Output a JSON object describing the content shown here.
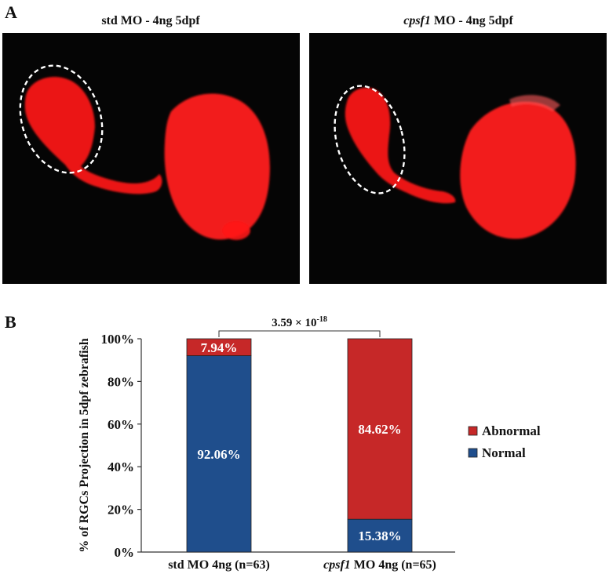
{
  "panel_a": {
    "label": "A",
    "left_image": {
      "title_main": "std MO - 4ng 5dpf",
      "title_italic": ""
    },
    "right_image": {
      "title_italic": "cpsf1",
      "title_main": " MO - 4ng 5dpf"
    }
  },
  "panel_b": {
    "label": "B"
  },
  "colors": {
    "abnormal": "#c62828",
    "normal": "#1f4e8c",
    "fluorescence": "#ff1a1a"
  },
  "chart_data": {
    "type": "bar",
    "stacked": true,
    "ylabel": "% of RGCs  Projection  in 5dpf zebrafish",
    "yticks": [
      "0%",
      "20%",
      "40%",
      "60%",
      "80%",
      "100%"
    ],
    "ylim": [
      0,
      100
    ],
    "categories": [
      {
        "prefix": "",
        "italic": "",
        "suffix": "std MO 4ng (n=63)"
      },
      {
        "prefix": "",
        "italic": "cpsf1",
        "suffix": " MO 4ng (n=65)"
      }
    ],
    "series": [
      {
        "name": "Normal",
        "values": [
          92.06,
          15.38
        ],
        "labels": [
          "92.06%",
          "15.38%"
        ]
      },
      {
        "name": "Abnormal",
        "values": [
          7.94,
          84.62
        ],
        "labels": [
          "7.94%",
          "84.62%"
        ]
      }
    ],
    "legend": {
      "placement": "right",
      "order": [
        "Abnormal",
        "Normal"
      ]
    },
    "annotation": {
      "base": "3.59 × 10",
      "exponent": "-18"
    }
  }
}
